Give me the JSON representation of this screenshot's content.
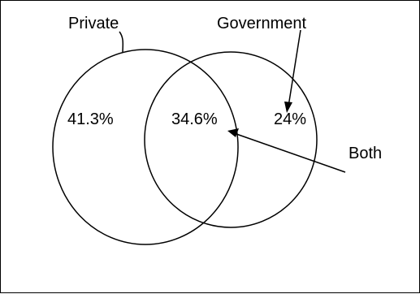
{
  "labels": {
    "private": "Private",
    "government": "Government",
    "both": "Both"
  },
  "regions": {
    "private_only": "41.3%",
    "both": "34.6%",
    "government_only": "24%"
  },
  "colors": {
    "stroke": "#000000",
    "background": "#ffffff"
  }
}
